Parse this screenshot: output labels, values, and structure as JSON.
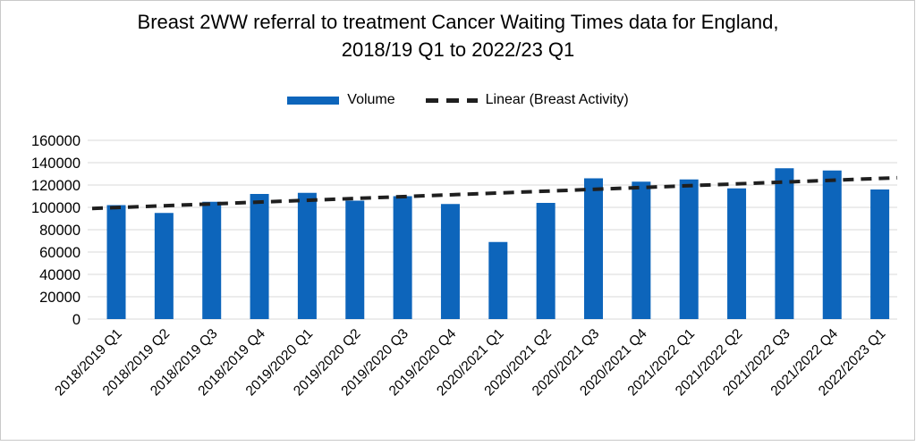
{
  "chart_data": {
    "type": "bar",
    "title": "Breast 2WW referral to treatment Cancer Waiting Times data for England, 2018/19 Q1 to 2022/23 Q1",
    "xlabel": "",
    "ylabel": "",
    "categories": [
      "2018/2019 Q1",
      "2018/2019 Q2",
      "2018/2019 Q3",
      "2018/2019 Q4",
      "2019/2020 Q1",
      "2019/2020 Q2",
      "2019/2020 Q3",
      "2019/2020 Q4",
      "2020/2021 Q1",
      "2020/2021 Q2",
      "2020/2021 Q3",
      "2020/2021 Q4",
      "2021/2022 Q1",
      "2021/2022 Q2",
      "2021/2022 Q3",
      "2021/2022 Q4",
      "2022/2023 Q1"
    ],
    "series": [
      {
        "name": "Volume",
        "color": "#0d65bb",
        "values": [
          102000,
          95000,
          105000,
          112000,
          113000,
          106000,
          110000,
          103000,
          69000,
          104000,
          126000,
          123000,
          125000,
          117000,
          135000,
          133000,
          116000
        ]
      }
    ],
    "trendline": {
      "name": "Linear (Breast Activity)",
      "style": "dashed",
      "color": "#1f1f1f",
      "start_value": 99000,
      "end_value": 126500
    },
    "ylim": [
      0,
      160000
    ],
    "yticks": [
      0,
      20000,
      40000,
      60000,
      80000,
      100000,
      120000,
      140000,
      160000
    ],
    "grid": "horizontal",
    "legend_position": "top"
  },
  "colors": {
    "gridline": "#d9d9d9",
    "axis_line": "#d9d9d9",
    "text": "#000000",
    "frame_border": "#c9c9c9",
    "background": "#ffffff"
  }
}
